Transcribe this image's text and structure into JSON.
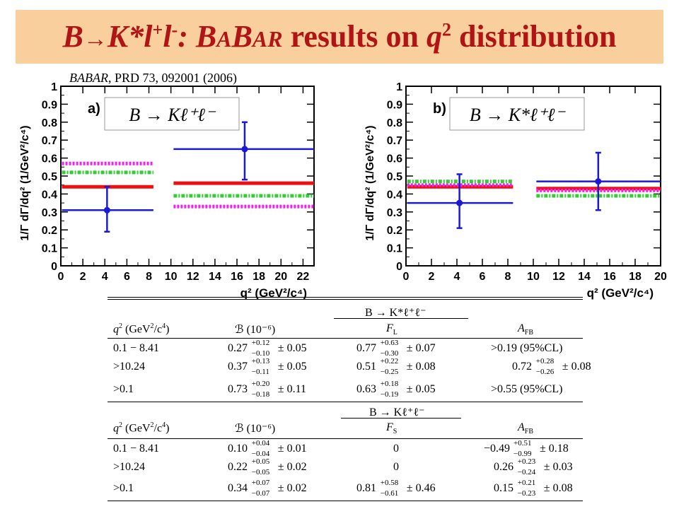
{
  "title": {
    "part1": "B",
    "arrow": "→",
    "part2": "K*l",
    "sup_plus": "+",
    "part3": "l",
    "sup_minus": "-",
    "part4": ": B",
    "sc1": "A",
    "part5": "B",
    "sc2": "AR",
    "part6": " results on ",
    "q": "q",
    "q_exp": "2",
    "part7": " distribution"
  },
  "citation": {
    "collab": "BABAR",
    "rest": ", PRD 73, 092001 (2006)"
  },
  "colors": {
    "title_bg": "#f9cf9e",
    "title_text": "#b01414",
    "data": "#1a1ad6",
    "sm": "#ee1111",
    "dotted_magenta": "#ee22ee",
    "dotted_green": "#33cc33"
  },
  "chart_data": [
    {
      "type": "line",
      "panel_label": "a)",
      "process": "B → Kℓ⁺ℓ⁻",
      "xlabel": "q² (GeV²/c⁴)",
      "ylabel": "1/Γ dΓ/dq² (1/GeV²/c⁴)",
      "xlim": [
        0,
        23
      ],
      "ylim": [
        0,
        1
      ],
      "xticks": [
        "0",
        "2",
        "4",
        "6",
        "8",
        "10",
        "12",
        "14",
        "16",
        "18",
        "20",
        "22"
      ],
      "yticks": [
        "0",
        "0.1",
        "0.2",
        "0.3",
        "0.4",
        "0.5",
        "0.6",
        "0.7",
        "0.8",
        "0.9",
        "1"
      ],
      "data_points": [
        {
          "x": 4.2,
          "y": 0.31,
          "xerr": [
            0.1,
            8.41
          ],
          "yerr": [
            0.19,
            0.44
          ]
        },
        {
          "x": 16.7,
          "y": 0.65,
          "xerr": [
            10.24,
            23.0
          ],
          "yerr": [
            0.48,
            0.8
          ]
        }
      ],
      "model_bands": [
        {
          "style": "solid-red",
          "segments": [
            {
              "x": [
                0.1,
                8.41
              ],
              "y": 0.44
            },
            {
              "x": [
                10.24,
                23.0
              ],
              "y": 0.46
            }
          ]
        },
        {
          "style": "dotted-magenta",
          "segments": [
            {
              "x": [
                0.1,
                8.41
              ],
              "y": 0.57
            },
            {
              "x": [
                10.24,
                23.0
              ],
              "y": 0.33
            }
          ]
        },
        {
          "style": "dotted-green",
          "segments": [
            {
              "x": [
                0.1,
                8.41
              ],
              "y": 0.52
            },
            {
              "x": [
                10.24,
                23.0
              ],
              "y": 0.39
            }
          ]
        }
      ]
    },
    {
      "type": "line",
      "panel_label": "b)",
      "process": "B → K*ℓ⁺ℓ⁻",
      "xlabel": "q² (GeV²/c⁴)",
      "ylabel": "1/Γ dΓ/dq² (1/GeV²/c⁴)",
      "xlim": [
        0,
        20
      ],
      "ylim": [
        0,
        1
      ],
      "xticks": [
        "0",
        "2",
        "4",
        "6",
        "8",
        "10",
        "12",
        "14",
        "16",
        "18",
        "20"
      ],
      "yticks": [
        "0",
        "0.1",
        "0.2",
        "0.3",
        "0.4",
        "0.5",
        "0.6",
        "0.7",
        "0.8",
        "0.9",
        "1"
      ],
      "data_points": [
        {
          "x": 4.2,
          "y": 0.35,
          "xerr": [
            0.1,
            8.41
          ],
          "yerr": [
            0.21,
            0.51
          ]
        },
        {
          "x": 15.1,
          "y": 0.47,
          "xerr": [
            10.24,
            20.0
          ],
          "yerr": [
            0.31,
            0.63
          ]
        }
      ],
      "model_bands": [
        {
          "style": "solid-red",
          "segments": [
            {
              "x": [
                0.1,
                8.41
              ],
              "y": 0.44
            },
            {
              "x": [
                10.24,
                20.0
              ],
              "y": 0.43
            }
          ]
        },
        {
          "style": "dotted-magenta",
          "segments": [
            {
              "x": [
                0.1,
                8.41
              ],
              "y": 0.45
            },
            {
              "x": [
                10.24,
                20.0
              ],
              "y": 0.42
            }
          ]
        },
        {
          "style": "dotted-green",
          "segments": [
            {
              "x": [
                0.1,
                8.41
              ],
              "y": 0.47
            },
            {
              "x": [
                10.24,
                20.0
              ],
              "y": 0.39
            }
          ]
        }
      ]
    }
  ],
  "table": {
    "kstar_section": {
      "process": "B → K*ℓ⁺ℓ⁻",
      "headers": [
        "q² (GeV²/c⁴)",
        "ℬ (10⁻⁶)",
        "F_L",
        "A_FB"
      ],
      "h_q": "q",
      "h_q_rest": "(GeV",
      "h_q_rest2": "/c",
      "h_q_end": ")",
      "h_b": "ℬ (10⁻⁶)",
      "h_f": "F",
      "h_f_sub": "L",
      "h_a": "A",
      "h_a_sub": "FB",
      "rows": [
        {
          "range": "0.1 − 8.41",
          "b_val": "0.27",
          "b_up": "+0.12",
          "b_dn": "−0.10",
          "b_sys": "± 0.05",
          "f_val": "0.77",
          "f_up": "+0.63",
          "f_dn": "−0.30",
          "f_sys": "± 0.07",
          "a_text": ">0.19 (95%CL)"
        },
        {
          "range": ">10.24",
          "b_val": "0.37",
          "b_up": "+0.13",
          "b_dn": "−0.11",
          "b_sys": "± 0.05",
          "f_val": "0.51",
          "f_up": "+0.22",
          "f_dn": "−0.25",
          "f_sys": "± 0.08",
          "a_val": "0.72",
          "a_up": "+0.28",
          "a_dn": "−0.26",
          "a_sys": "± 0.08"
        },
        {
          "range": ">0.1",
          "b_val": "0.73",
          "b_up": "+0.20",
          "b_dn": "−0.18",
          "b_sys": "± 0.11",
          "f_val": "0.63",
          "f_up": "+0.18",
          "f_dn": "−0.19",
          "f_sys": "± 0.05",
          "a_text": ">0.55 (95%CL)"
        }
      ]
    },
    "k_section": {
      "process": "B → Kℓ⁺ℓ⁻",
      "h_f": "F",
      "h_f_sub": "S",
      "rows": [
        {
          "range": "0.1 − 8.41",
          "b_val": "0.10",
          "b_up": "+0.04",
          "b_dn": "−0.04",
          "b_sys": "± 0.01",
          "f_text": "0",
          "a_val": "−0.49",
          "a_up": "+0.51",
          "a_dn": "−0.99",
          "a_sys": "± 0.18"
        },
        {
          "range": ">10.24",
          "b_val": "0.22",
          "b_up": "+0.05",
          "b_dn": "−0.05",
          "b_sys": "± 0.02",
          "f_text": "0",
          "a_val": "0.26",
          "a_up": "+0.23",
          "a_dn": "−0.24",
          "a_sys": "± 0.03"
        },
        {
          "range": ">0.1",
          "b_val": "0.34",
          "b_up": "+0.07",
          "b_dn": "−0.07",
          "b_sys": "± 0.02",
          "f_val": "0.81",
          "f_up": "+0.58",
          "f_dn": "−0.61",
          "f_sys": "± 0.46",
          "a_val": "0.15",
          "a_up": "+0.21",
          "a_dn": "−0.23",
          "a_sys": "± 0.08"
        }
      ]
    }
  }
}
